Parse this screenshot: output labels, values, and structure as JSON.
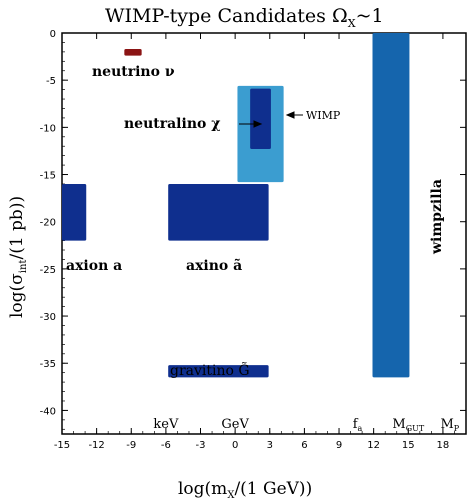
{
  "chart_data": {
    "type": "range",
    "title": "WIMP-type Candidates Ω",
    "title_sub": "X",
    "title_tail": "~1",
    "xlabel": "log(m",
    "xlabel_sub": "X",
    "xlabel_tail": "/(1 GeV))",
    "ylabel": "log(σ",
    "ylabel_sub": "int",
    "ylabel_tail": "/(1 pb))",
    "xlim": [
      -15,
      20
    ],
    "ylim": [
      -42.5,
      0
    ],
    "x_ticks": [
      "-15",
      "-12",
      "-9",
      "-6",
      "-3",
      "0",
      "3",
      "6",
      "9",
      "12",
      "15",
      "18"
    ],
    "x_tick_values": [
      -15,
      -12,
      -9,
      -6,
      -3,
      0,
      3,
      6,
      9,
      12,
      15,
      18
    ],
    "y_ticks": [
      "0",
      "-5",
      "-10",
      "-15",
      "-20",
      "-25",
      "-30",
      "-35",
      "-40"
    ],
    "y_tick_values": [
      0,
      -5,
      -10,
      -15,
      -20,
      -25,
      -30,
      -35,
      -40
    ],
    "colors": {
      "dark_blue": "#0f2f8e",
      "mid_blue": "#1565ad",
      "light_blue": "#3b9dd0",
      "neutrino_red": "#8b1414",
      "frame": "#000000"
    },
    "regions": [
      {
        "name": "neutrino ν",
        "x": [
          -9.6,
          -8.1
        ],
        "y": [
          -2.4,
          -1.7
        ],
        "color": "neutrino_red"
      },
      {
        "name": "axion a",
        "x": [
          -15,
          -12.9
        ],
        "y": [
          -22,
          -16
        ],
        "color": "dark_blue"
      },
      {
        "name": "axino ã",
        "x": [
          -5.8,
          2.9
        ],
        "y": [
          -22,
          -16
        ],
        "color": "dark_blue"
      },
      {
        "name": "WIMP",
        "x": [
          0.2,
          4.2
        ],
        "y": [
          -15.8,
          -5.6
        ],
        "color": "light_blue"
      },
      {
        "name": "neutralino χ",
        "x": [
          1.3,
          3.1
        ],
        "y": [
          -12.3,
          -5.9
        ],
        "color": "dark_blue"
      },
      {
        "name": "gravitino G̃",
        "x": [
          -5.8,
          2.9
        ],
        "y": [
          -36.5,
          -35.2
        ],
        "color": "dark_blue"
      },
      {
        "name": "wimpzilla",
        "x": [
          11.9,
          15.1
        ],
        "y": [
          -36.5,
          0
        ],
        "color": "mid_blue"
      }
    ],
    "labels": {
      "neutrino": "neutrino ν",
      "neutralino": "neutralino χ",
      "wimp": "WIMP",
      "axion": "axion a",
      "axino": "axino ã",
      "gravitino": "gravitino G̃",
      "wimpzilla": "wimpzilla"
    },
    "scale_labels": [
      {
        "text": "keV",
        "x": -6,
        "sub": ""
      },
      {
        "text": "GeV",
        "x": 0,
        "sub": ""
      },
      {
        "text": "f",
        "x": 10.6,
        "sub": "a"
      },
      {
        "text": "M",
        "x": 15,
        "sub": "GUT"
      },
      {
        "text": "M",
        "x": 18.6,
        "sub": "P"
      }
    ]
  }
}
